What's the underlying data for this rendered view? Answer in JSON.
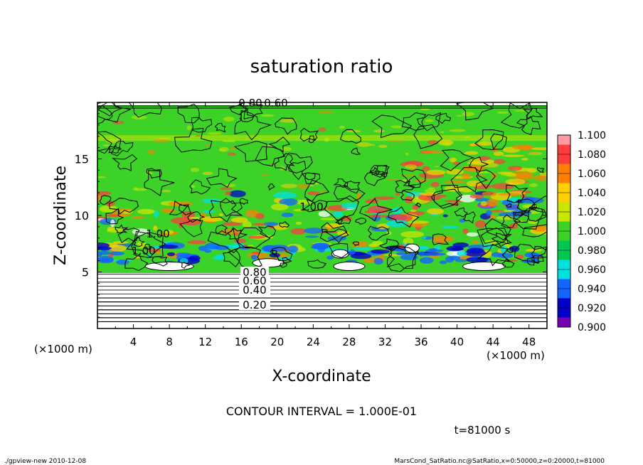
{
  "chart_data": {
    "type": "heatmap",
    "title": "saturation ratio",
    "xlabel": "X-coordinate",
    "ylabel": "Z-coordinate",
    "x_unit_left": "(×1000 m)",
    "x_unit_right": "(×1000 m)",
    "x_range": [
      0,
      50
    ],
    "y_range": [
      0,
      20
    ],
    "x_ticks": [
      "4",
      "8",
      "12",
      "16",
      "20",
      "24",
      "28",
      "32",
      "36",
      "40",
      "44",
      "48"
    ],
    "y_ticks": [
      "5",
      "10",
      "15"
    ],
    "colorbar": {
      "levels": [
        "1.100",
        "1.080",
        "1.060",
        "1.040",
        "1.020",
        "1.000",
        "0.980",
        "0.960",
        "0.940",
        "0.920",
        "0.900"
      ],
      "colors": [
        "#ff9aa0",
        "#ff3c3c",
        "#ff8000",
        "#ffd000",
        "#c8e600",
        "#3cd228",
        "#00c850",
        "#00e0e0",
        "#1464ff",
        "#0000c8",
        "#7800b4"
      ]
    },
    "contour_labels": [
      "0.20",
      "0.40",
      "0.60",
      "0.80",
      "0.60",
      "1.00",
      "1.00",
      "1.00",
      "0.80"
    ],
    "contour_interval": "CONTOUR INTERVAL = 1.000E-01",
    "time_label": "t=81000 s",
    "footer_left": "./gpview-new 2010-12-08",
    "footer_right": "MarsCond_SatRatio.nc@SatRatio,x=0:50000,z=0:20000,t=81000"
  }
}
